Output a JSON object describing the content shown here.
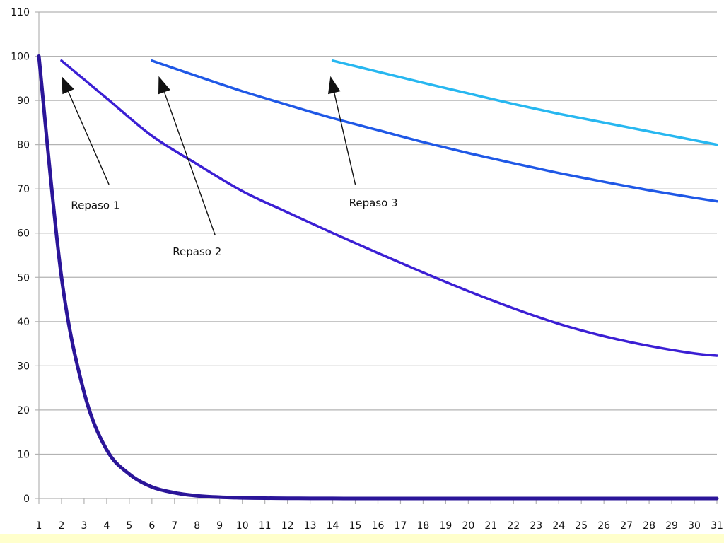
{
  "chart_data": {
    "type": "line",
    "title": "",
    "xlabel": "",
    "ylabel": "",
    "xlim": [
      1,
      31
    ],
    "ylim": [
      0,
      110
    ],
    "grid": true,
    "x_ticks": [
      1,
      2,
      3,
      4,
      5,
      6,
      7,
      8,
      9,
      10,
      11,
      12,
      13,
      14,
      15,
      16,
      17,
      18,
      19,
      20,
      21,
      22,
      23,
      24,
      25,
      26,
      27,
      28,
      29,
      30,
      31
    ],
    "y_ticks": [
      0,
      10,
      20,
      30,
      40,
      50,
      60,
      70,
      80,
      90,
      100,
      110
    ],
    "series": [
      {
        "color": "#2b1599",
        "x": [
          1,
          2,
          3,
          4,
          5,
          6,
          7,
          8,
          9,
          10,
          11,
          12,
          13,
          14,
          15,
          16,
          17,
          18,
          19,
          20,
          21,
          22,
          23,
          24,
          25,
          26,
          27,
          28,
          29,
          30,
          31
        ],
        "y": [
          100,
          50,
          24,
          11,
          5.5,
          2.6,
          1.3,
          0.6,
          0.3,
          0.15,
          0.08,
          0.04,
          0.02,
          0.01,
          0,
          0,
          0,
          0,
          0,
          0,
          0,
          0,
          0,
          0,
          0,
          0,
          0,
          0,
          0,
          0,
          0
        ]
      },
      {
        "color": "#3b1fd4",
        "x": [
          2,
          4,
          6,
          8,
          10,
          12,
          14,
          16,
          18,
          20,
          22,
          24,
          26,
          28,
          30,
          31
        ],
        "y": [
          99,
          90.5,
          82,
          75.6,
          69.5,
          64.7,
          60,
          55.5,
          51.1,
          46.9,
          43,
          39.5,
          36.7,
          34.5,
          32.8,
          32.3
        ]
      },
      {
        "color": "#1f58e6",
        "x": [
          6,
          8,
          10,
          12,
          14,
          16,
          18,
          20,
          22,
          24,
          26,
          28,
          30,
          31
        ],
        "y": [
          99,
          95.5,
          92.1,
          89,
          86,
          83.3,
          80.6,
          78.1,
          75.8,
          73.6,
          71.6,
          69.7,
          68,
          67.2
        ]
      },
      {
        "color": "#27b7f0",
        "x": [
          14,
          16,
          18,
          20,
          22,
          24,
          26,
          28,
          30,
          31
        ],
        "y": [
          99,
          96.5,
          94,
          91.6,
          89.2,
          87,
          85,
          83,
          81,
          80
        ]
      }
    ],
    "annotations": [
      {
        "text": "Repaso 1",
        "label_at": [
          3.5,
          65.5
        ],
        "tail": [
          4.1,
          71
        ],
        "head": [
          2.0,
          95.5
        ]
      },
      {
        "text": "Repaso 2",
        "label_at": [
          8.0,
          55
        ],
        "tail": [
          8.8,
          59.5
        ],
        "head": [
          6.3,
          95.5
        ]
      },
      {
        "text": "Repaso 3",
        "label_at": [
          15.8,
          66
        ],
        "tail": [
          15.0,
          71
        ],
        "head": [
          13.9,
          95.5
        ]
      }
    ]
  }
}
